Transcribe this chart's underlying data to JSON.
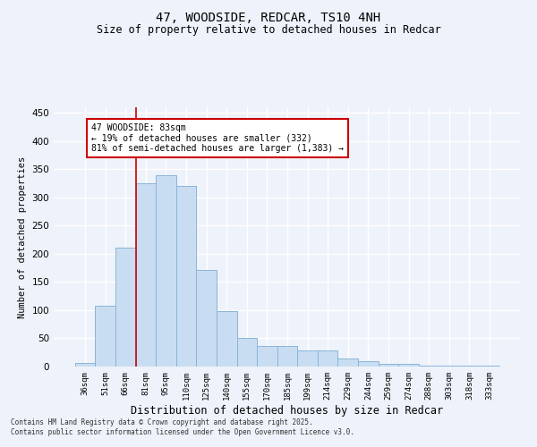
{
  "title": "47, WOODSIDE, REDCAR, TS10 4NH",
  "subtitle": "Size of property relative to detached houses in Redcar",
  "xlabel": "Distribution of detached houses by size in Redcar",
  "ylabel": "Number of detached properties",
  "categories": [
    "36sqm",
    "51sqm",
    "66sqm",
    "81sqm",
    "95sqm",
    "110sqm",
    "125sqm",
    "140sqm",
    "155sqm",
    "170sqm",
    "185sqm",
    "199sqm",
    "214sqm",
    "229sqm",
    "244sqm",
    "259sqm",
    "274sqm",
    "288sqm",
    "303sqm",
    "318sqm",
    "333sqm"
  ],
  "values": [
    7,
    108,
    211,
    325,
    340,
    320,
    171,
    99,
    50,
    36,
    36,
    29,
    29,
    15,
    10,
    5,
    5,
    2,
    1,
    1,
    1
  ],
  "bar_color": "#c9ddf2",
  "bar_edge_color": "#8ab4d8",
  "background_color": "#eef2fa",
  "grid_color": "#ffffff",
  "red_line_index": 3,
  "annotation_text_line1": "47 WOODSIDE: 83sqm",
  "annotation_text_line2": "← 19% of detached houses are smaller (332)",
  "annotation_text_line3": "81% of semi-detached houses are larger (1,383) →",
  "annotation_box_color": "#ffffff",
  "annotation_box_edge_color": "#cc0000",
  "footer_line1": "Contains HM Land Registry data © Crown copyright and database right 2025.",
  "footer_line2": "Contains public sector information licensed under the Open Government Licence v3.0.",
  "ylim": [
    0,
    460
  ],
  "yticks": [
    0,
    50,
    100,
    150,
    200,
    250,
    300,
    350,
    400,
    450
  ]
}
